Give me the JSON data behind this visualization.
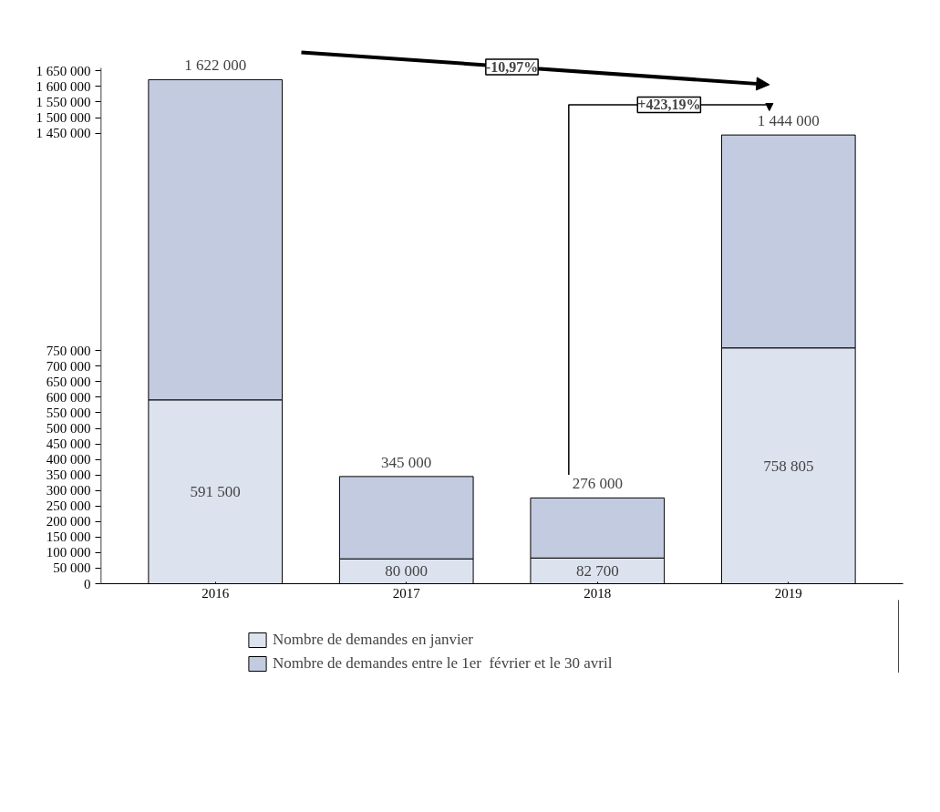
{
  "chart_data": {
    "type": "bar",
    "stacked": true,
    "categories": [
      "2016",
      "2017",
      "2018",
      "2019"
    ],
    "series": [
      {
        "name": "Nombre de demandes en janvier",
        "color": "#dde3ee",
        "values": [
          591500,
          80000,
          82700,
          758805
        ],
        "value_labels": [
          "591 500",
          "80 000",
          "82 700",
          "758 805"
        ]
      },
      {
        "name": "Nombre de demandes entre le 1er  février et le 30 avril",
        "color": "#c2cbdf",
        "values": [
          1030500,
          265000,
          193300,
          685195
        ]
      }
    ],
    "totals": [
      "1 622 000",
      "345 000",
      "276 000",
      "1 444 000"
    ],
    "ylim": [
      0,
      1660000
    ],
    "yticks": [
      0,
      {
        "value": 50000,
        "label": "50 000"
      },
      {
        "value": 100000,
        "label": "100 000"
      },
      {
        "value": 150000,
        "label": "150 000"
      },
      {
        "value": 200000,
        "label": "200 000"
      },
      {
        "value": 250000,
        "label": "250 000"
      },
      {
        "value": 300000,
        "label": "300 000"
      },
      {
        "value": 350000,
        "label": "350 000"
      },
      {
        "value": 400000,
        "label": "400 000"
      },
      {
        "value": 450000,
        "label": "450 000"
      },
      {
        "value": 500000,
        "label": "500 000"
      },
      {
        "value": 550000,
        "label": "550 000"
      },
      {
        "value": 600000,
        "label": "600 000"
      },
      {
        "value": 650000,
        "label": "650 000"
      },
      {
        "value": 700000,
        "label": "700 000"
      },
      {
        "value": 750000,
        "label": "750 000"
      },
      {
        "value": 1450000,
        "label": "1 450 000"
      },
      {
        "value": 1500000,
        "label": "1 500 000"
      },
      {
        "value": 1550000,
        "label": "1 550 000"
      },
      {
        "value": 1600000,
        "label": "1 600 000"
      },
      {
        "value": 1650000,
        "label": "1 650 000"
      }
    ],
    "annotations": [
      "-10,97%",
      "+423,19%"
    ],
    "grid": false,
    "legend": "bottom"
  }
}
